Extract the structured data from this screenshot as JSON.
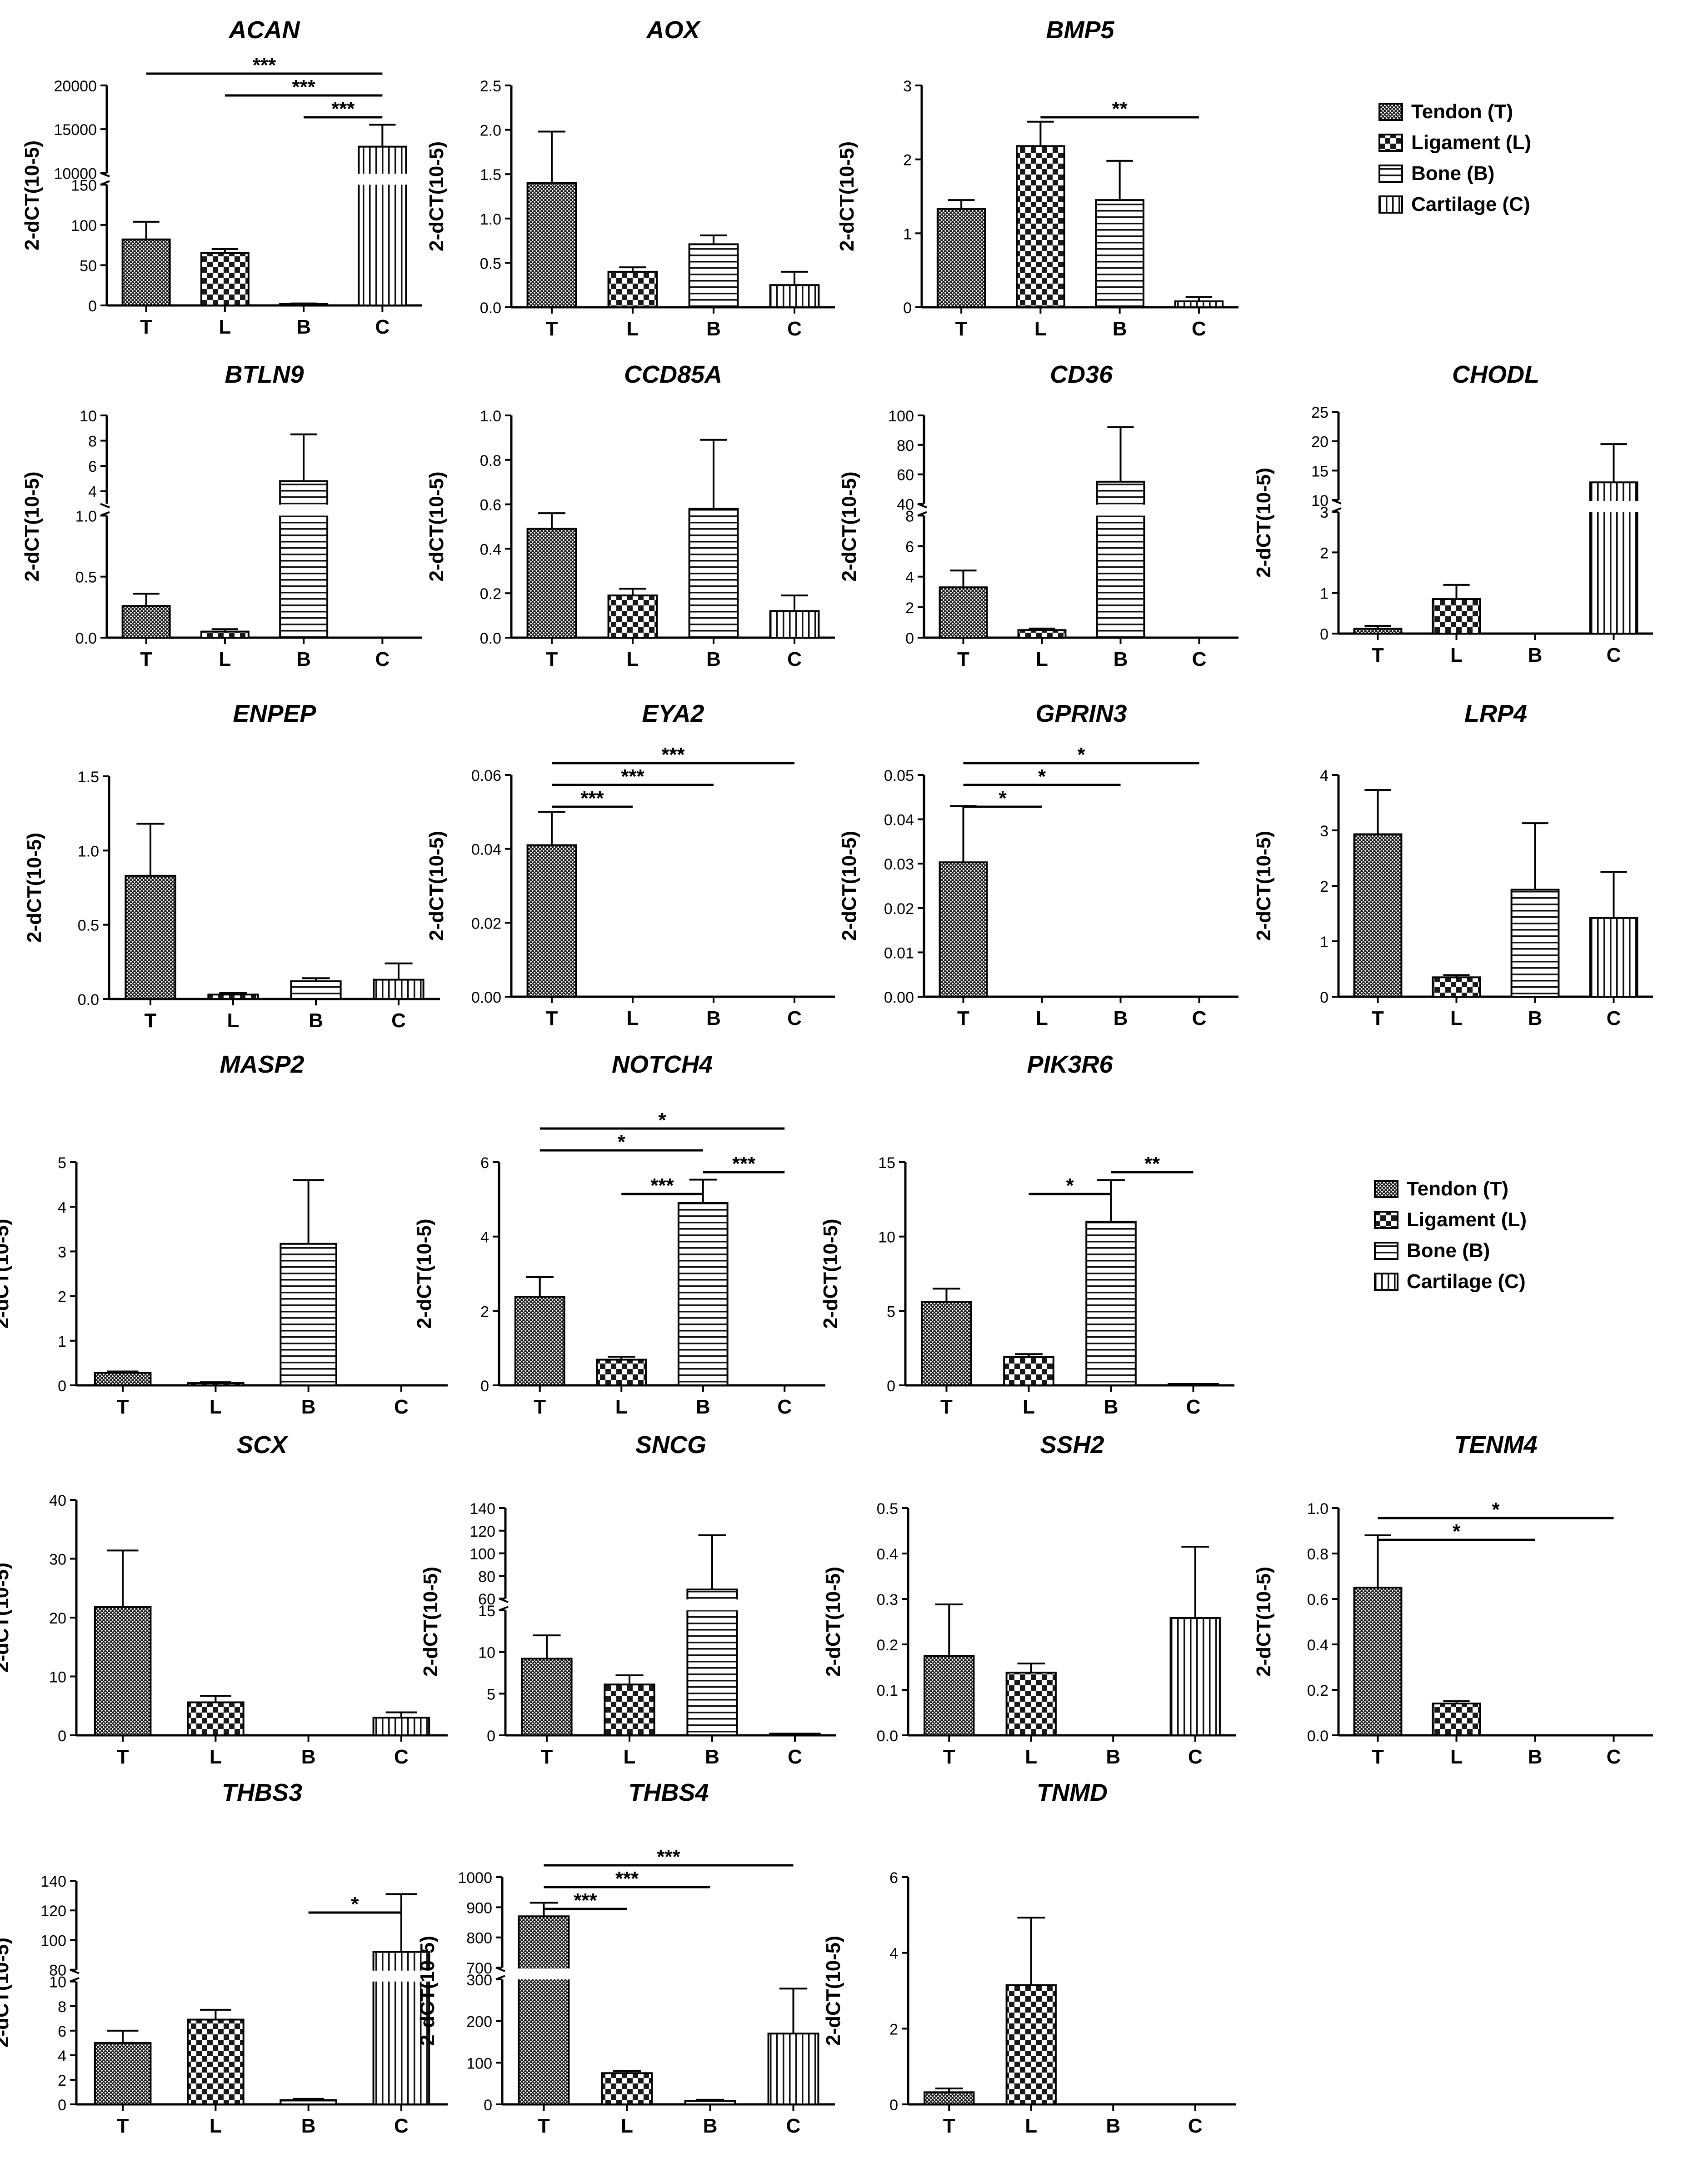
{
  "figure": {
    "ylabel": "2-dCT(10-5)",
    "legend_top": [
      {
        "label": "Tendon (T)",
        "pattern": "tendon"
      },
      {
        "label": "Ligament (L)",
        "pattern": "ligament"
      },
      {
        "label": "Bone (B)",
        "pattern": "bone"
      },
      {
        "label": "Cartilage (C)",
        "pattern": "cartilage"
      }
    ],
    "legend_bottom": [
      {
        "label": "Tendon (T)",
        "pattern": "tendon"
      },
      {
        "label": "Ligament (L)",
        "pattern": "ligament"
      },
      {
        "label": "Bone (B)",
        "pattern": "bone"
      },
      {
        "label": "Cartilage (C)",
        "pattern": "cartilage"
      }
    ]
  },
  "chart_data": [
    {
      "type": "bar",
      "title": "ACAN",
      "categories": [
        "T",
        "L",
        "B",
        "C"
      ],
      "values": [
        82,
        65,
        2,
        13000
      ],
      "errors": [
        22,
        5,
        0.5,
        2500
      ],
      "axis": {
        "segments": [
          {
            "min": 0,
            "max": 150,
            "ticks": [
              0,
              50,
              100,
              150
            ]
          },
          {
            "min": 10000,
            "max": 20000,
            "ticks": [
              10000,
              15000,
              20000
            ]
          }
        ]
      },
      "sig": [
        {
          "from": "T",
          "to": "C",
          "label": "***"
        },
        {
          "from": "L",
          "to": "C",
          "label": "***"
        },
        {
          "from": "B",
          "to": "C",
          "label": "***"
        }
      ]
    },
    {
      "type": "bar",
      "title": "AOX",
      "categories": [
        "T",
        "L",
        "B",
        "C"
      ],
      "values": [
        1.4,
        0.4,
        0.71,
        0.25
      ],
      "errors": [
        0.58,
        0.05,
        0.1,
        0.15
      ],
      "axis": {
        "segments": [
          {
            "min": 0,
            "max": 2.5,
            "ticks": [
              0.0,
              0.5,
              1.0,
              1.5,
              2.0,
              2.5
            ]
          }
        ]
      },
      "sig": []
    },
    {
      "type": "bar",
      "title": "BMP5",
      "categories": [
        "T",
        "L",
        "B",
        "C"
      ],
      "values": [
        1.33,
        2.18,
        1.45,
        0.08
      ],
      "errors": [
        0.12,
        0.33,
        0.53,
        0.06
      ],
      "axis": {
        "segments": [
          {
            "min": 0,
            "max": 3,
            "ticks": [
              0,
              1,
              2,
              3
            ]
          }
        ]
      },
      "sig": [
        {
          "from": "L",
          "to": "C",
          "label": "**"
        }
      ]
    },
    {
      "type": "bar",
      "title": "BTLN9",
      "categories": [
        "T",
        "L",
        "B",
        "C"
      ],
      "values": [
        0.26,
        0.05,
        4.8,
        0
      ],
      "errors": [
        0.1,
        0.02,
        3.7,
        0
      ],
      "axis": {
        "segments": [
          {
            "min": 0,
            "max": 1.0,
            "ticks": [
              0.0,
              0.5,
              1.0
            ]
          },
          {
            "min": 3,
            "max": 10,
            "ticks": [
              4,
              6,
              8,
              10
            ]
          }
        ]
      },
      "sig": []
    },
    {
      "type": "bar",
      "title": "CCD85A",
      "categories": [
        "T",
        "L",
        "B",
        "C"
      ],
      "values": [
        0.49,
        0.19,
        0.58,
        0.12
      ],
      "errors": [
        0.07,
        0.03,
        0.31,
        0.07
      ],
      "axis": {
        "segments": [
          {
            "min": 0,
            "max": 1.0,
            "ticks": [
              0.0,
              0.2,
              0.4,
              0.6,
              0.8,
              1.0
            ]
          }
        ]
      },
      "sig": []
    },
    {
      "type": "bar",
      "title": "CD36",
      "categories": [
        "T",
        "L",
        "B",
        "C"
      ],
      "values": [
        3.3,
        0.5,
        55,
        0
      ],
      "errors": [
        1.1,
        0.1,
        37,
        0
      ],
      "axis": {
        "segments": [
          {
            "min": 0,
            "max": 8,
            "ticks": [
              0,
              2,
              4,
              6,
              8
            ]
          },
          {
            "min": 40,
            "max": 100,
            "ticks": [
              40,
              60,
              80,
              100
            ]
          }
        ]
      },
      "sig": []
    },
    {
      "type": "bar",
      "title": "CHODL",
      "categories": [
        "T",
        "L",
        "B",
        "C"
      ],
      "values": [
        0.12,
        0.85,
        0,
        13
      ],
      "errors": [
        0.07,
        0.35,
        0,
        6.5
      ],
      "axis": {
        "segments": [
          {
            "min": 0,
            "max": 3,
            "ticks": [
              0,
              1,
              2,
              3
            ]
          },
          {
            "min": 10,
            "max": 25,
            "ticks": [
              10,
              15,
              20,
              25
            ]
          }
        ]
      },
      "sig": []
    },
    {
      "type": "bar",
      "title": "ENPEP",
      "categories": [
        "T",
        "L",
        "B",
        "C"
      ],
      "values": [
        0.83,
        0.03,
        0.12,
        0.13
      ],
      "errors": [
        0.35,
        0.01,
        0.02,
        0.11
      ],
      "axis": {
        "segments": [
          {
            "min": 0,
            "max": 1.5,
            "ticks": [
              0.0,
              0.5,
              1.0,
              1.5
            ]
          }
        ]
      },
      "sig": []
    },
    {
      "type": "bar",
      "title": "EYA2",
      "categories": [
        "T",
        "L",
        "B",
        "C"
      ],
      "values": [
        0.041,
        0,
        0,
        0
      ],
      "errors": [
        0.009,
        0,
        0,
        0
      ],
      "axis": {
        "segments": [
          {
            "min": 0,
            "max": 0.06,
            "ticks": [
              0.0,
              0.02,
              0.04,
              0.06
            ]
          }
        ]
      },
      "sig": [
        {
          "from": "T",
          "to": "L",
          "label": "***"
        },
        {
          "from": "T",
          "to": "B",
          "label": "***"
        },
        {
          "from": "T",
          "to": "C",
          "label": "***"
        }
      ]
    },
    {
      "type": "bar",
      "title": "GPRIN3",
      "categories": [
        "T",
        "L",
        "B",
        "C"
      ],
      "values": [
        0.0303,
        0,
        0,
        0
      ],
      "errors": [
        0.0127,
        0,
        0,
        0
      ],
      "axis": {
        "segments": [
          {
            "min": 0,
            "max": 0.05,
            "ticks": [
              0.0,
              0.01,
              0.02,
              0.03,
              0.04,
              0.05
            ]
          }
        ]
      },
      "sig": [
        {
          "from": "T",
          "to": "L",
          "label": "*"
        },
        {
          "from": "T",
          "to": "B",
          "label": "*"
        },
        {
          "from": "T",
          "to": "C",
          "label": "*"
        }
      ]
    },
    {
      "type": "bar",
      "title": "LRP4",
      "categories": [
        "T",
        "L",
        "B",
        "C"
      ],
      "values": [
        2.93,
        0.35,
        1.93,
        1.42
      ],
      "errors": [
        0.8,
        0.04,
        1.2,
        0.83
      ],
      "axis": {
        "segments": [
          {
            "min": 0,
            "max": 4,
            "ticks": [
              0,
              1,
              2,
              3,
              4
            ]
          }
        ]
      },
      "sig": []
    },
    {
      "type": "bar",
      "title": "MASP2",
      "categories": [
        "T",
        "L",
        "B",
        "C"
      ],
      "values": [
        0.28,
        0.05,
        3.17,
        0
      ],
      "errors": [
        0.03,
        0.02,
        1.43,
        0
      ],
      "axis": {
        "segments": [
          {
            "min": 0,
            "max": 5,
            "ticks": [
              0,
              1,
              2,
              3,
              4,
              5
            ]
          }
        ]
      },
      "sig": []
    },
    {
      "type": "bar",
      "title": "NOTCH4",
      "categories": [
        "T",
        "L",
        "B",
        "C"
      ],
      "values": [
        2.38,
        0.69,
        4.9,
        0
      ],
      "errors": [
        0.53,
        0.08,
        0.63,
        0
      ],
      "axis": {
        "segments": [
          {
            "min": 0,
            "max": 6,
            "ticks": [
              0,
              2,
              4,
              6
            ]
          }
        ]
      },
      "sig": [
        {
          "from": "T",
          "to": "C",
          "label": "*"
        },
        {
          "from": "L",
          "to": "B",
          "label": "***"
        },
        {
          "from": "T",
          "to": "B",
          "label": "*"
        },
        {
          "from": "B",
          "to": "C",
          "label": "***"
        }
      ]
    },
    {
      "type": "bar",
      "title": "PIK3R6",
      "categories": [
        "T",
        "L",
        "B",
        "C"
      ],
      "values": [
        5.6,
        1.9,
        11,
        0.05
      ],
      "errors": [
        0.9,
        0.2,
        2.8,
        0
      ],
      "axis": {
        "segments": [
          {
            "min": 0,
            "max": 15,
            "ticks": [
              0,
              5,
              10,
              15
            ]
          }
        ]
      },
      "sig": [
        {
          "from": "L",
          "to": "B",
          "label": "*"
        },
        {
          "from": "B",
          "to": "C",
          "label": "**"
        }
      ]
    },
    {
      "type": "bar",
      "title": "SCX",
      "categories": [
        "T",
        "L",
        "B",
        "C"
      ],
      "values": [
        21.8,
        5.6,
        0,
        3
      ],
      "errors": [
        9.6,
        1.1,
        0,
        0.9
      ],
      "axis": {
        "segments": [
          {
            "min": 0,
            "max": 40,
            "ticks": [
              0,
              10,
              20,
              30,
              40
            ]
          }
        ]
      },
      "sig": []
    },
    {
      "type": "bar",
      "title": "SNCG",
      "categories": [
        "T",
        "L",
        "B",
        "C"
      ],
      "values": [
        9.2,
        6.1,
        68,
        0.2
      ],
      "errors": [
        2.8,
        1.1,
        48,
        0
      ],
      "axis": {
        "segments": [
          {
            "min": 0,
            "max": 15,
            "ticks": [
              0,
              5,
              10,
              15
            ]
          },
          {
            "min": 60,
            "max": 140,
            "ticks": [
              60,
              80,
              100,
              120,
              140
            ]
          }
        ]
      },
      "sig": []
    },
    {
      "type": "bar",
      "title": "SSH2",
      "categories": [
        "T",
        "L",
        "B",
        "C"
      ],
      "values": [
        0.175,
        0.138,
        0,
        0.258
      ],
      "errors": [
        0.113,
        0.02,
        0,
        0.157
      ],
      "axis": {
        "segments": [
          {
            "min": 0,
            "max": 0.5,
            "ticks": [
              0.0,
              0.1,
              0.2,
              0.3,
              0.4,
              0.5
            ]
          }
        ]
      },
      "sig": []
    },
    {
      "type": "bar",
      "title": "TENM4",
      "categories": [
        "T",
        "L",
        "B",
        "C"
      ],
      "values": [
        0.65,
        0.14,
        0,
        0
      ],
      "errors": [
        0.23,
        0.01,
        0,
        0
      ],
      "axis": {
        "segments": [
          {
            "min": 0,
            "max": 1.0,
            "ticks": [
              0.0,
              0.2,
              0.4,
              0.6,
              0.8,
              1.0
            ]
          }
        ]
      },
      "sig": [
        {
          "from": "T",
          "to": "C",
          "label": "*"
        },
        {
          "from": "T",
          "to": "B",
          "label": "*"
        }
      ]
    },
    {
      "type": "bar",
      "title": "THBS3",
      "categories": [
        "T",
        "L",
        "B",
        "C"
      ],
      "values": [
        5,
        6.9,
        0.35,
        92
      ],
      "errors": [
        1.0,
        0.8,
        0.1,
        39
      ],
      "axis": {
        "segments": [
          {
            "min": 0,
            "max": 10,
            "ticks": [
              0,
              2,
              4,
              6,
              8,
              10
            ]
          },
          {
            "min": 80,
            "max": 140,
            "ticks": [
              80,
              100,
              120,
              140
            ]
          }
        ]
      },
      "sig": [
        {
          "from": "B",
          "to": "C",
          "label": "*"
        }
      ]
    },
    {
      "type": "bar",
      "title": "THBS4",
      "categories": [
        "T",
        "L",
        "B",
        "C"
      ],
      "values": [
        870,
        75,
        8,
        170
      ],
      "errors": [
        45,
        5,
        3,
        108
      ],
      "axis": {
        "segments": [
          {
            "min": 0,
            "max": 300,
            "ticks": [
              0,
              100,
              200,
              300
            ]
          },
          {
            "min": 700,
            "max": 1000,
            "ticks": [
              700,
              800,
              900,
              1000
            ]
          }
        ]
      },
      "sig": [
        {
          "from": "T",
          "to": "L",
          "label": "***"
        },
        {
          "from": "T",
          "to": "B",
          "label": "***"
        },
        {
          "from": "T",
          "to": "C",
          "label": "***"
        }
      ]
    },
    {
      "type": "bar",
      "title": "TNMD",
      "categories": [
        "T",
        "L",
        "B",
        "C"
      ],
      "values": [
        0.32,
        3.15,
        0,
        0
      ],
      "errors": [
        0.1,
        1.78,
        0,
        0
      ],
      "axis": {
        "segments": [
          {
            "min": 0,
            "max": 6,
            "ticks": [
              0,
              2,
              4,
              6
            ]
          }
        ]
      },
      "sig": []
    }
  ]
}
